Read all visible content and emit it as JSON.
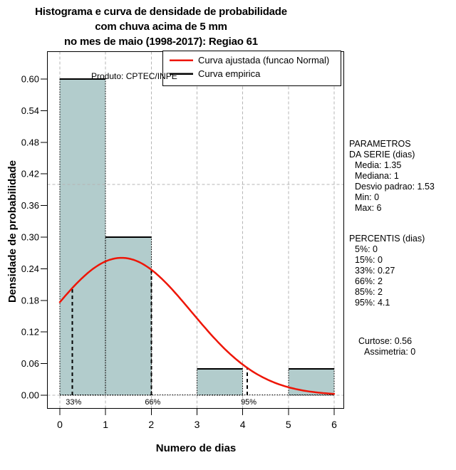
{
  "title": {
    "line1": "Histograma e curva de densidade de probabilidade",
    "line2": "com chuva acima de 5 mm",
    "line3": "no mes de maio (1998-2017): Regiao 61"
  },
  "produto_label": "Produto: CPTEC/INPE",
  "legend": {
    "items": [
      {
        "label": "Curva ajustada (funcao Normal)",
        "color": "#ee1506"
      },
      {
        "label": "Curva empirica",
        "color": "#000000"
      }
    ]
  },
  "stats_panel": {
    "parametros": {
      "header1": "PARAMETROS",
      "header2": "DA SERIE (dias)",
      "lines": [
        "Media: 1.35",
        "Mediana: 1",
        "Desvio padrao: 1.53",
        "Min: 0",
        "Max: 6"
      ]
    },
    "percentis": {
      "header": "PERCENTIS (dias)",
      "lines": [
        "5%: 0",
        "15%: 0",
        "33%: 0.27",
        "66%: 2",
        "85%: 2",
        "95%: 4.1"
      ]
    },
    "moments": {
      "lines": [
        "Curtose: 0.56",
        "Assimetria: 0"
      ]
    }
  },
  "chart_data": {
    "type": "histogram+density",
    "xlabel": "Numero de dias",
    "ylabel": "Densidade de probabilidade",
    "xlim": [
      0,
      6
    ],
    "ylim": [
      0,
      0.62
    ],
    "x_ticks": [
      0,
      1,
      2,
      3,
      4,
      5,
      6
    ],
    "y_ticks": [
      0,
      0.06,
      0.12,
      0.18,
      0.24,
      0.3,
      0.36,
      0.42,
      0.48,
      0.54,
      0.6
    ],
    "y_tick_labels": [
      "0.00",
      "0.06",
      "0.12",
      "0.18",
      "0.24",
      "0.30",
      "0.36",
      "0.42",
      "0.48",
      "0.54",
      "0.60"
    ],
    "bins": [
      {
        "x0": 0,
        "x1": 1,
        "density": 0.6
      },
      {
        "x0": 1,
        "x1": 2,
        "density": 0.3
      },
      {
        "x0": 2,
        "x1": 3,
        "density": 0.0
      },
      {
        "x0": 3,
        "x1": 4,
        "density": 0.05
      },
      {
        "x0": 4,
        "x1": 5,
        "density": 0.0
      },
      {
        "x0": 5,
        "x1": 6,
        "density": 0.05
      }
    ],
    "normal_fit": {
      "mean": 1.35,
      "sd": 1.53,
      "peak_density": 0.26
    },
    "percentile_lines": [
      {
        "label": "33%",
        "x": 0.27
      },
      {
        "label": "66%",
        "x": 2
      },
      {
        "label": "95%",
        "x": 4.1
      }
    ],
    "h_gridlines": [
      0,
      0.4
    ],
    "grid": true,
    "legend_position": "top-right",
    "colors": {
      "bar_fill": "#b2cccc",
      "bar_border": "#000000",
      "fit_curve": "#ee1506",
      "empirical": "#000000",
      "grid": "#b5b5b5"
    }
  }
}
